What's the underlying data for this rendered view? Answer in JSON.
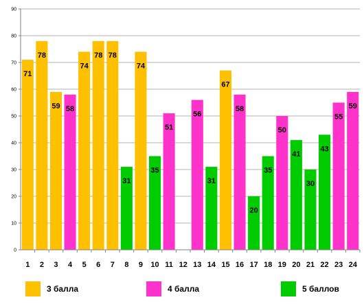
{
  "chart_data": {
    "type": "bar",
    "categories": [
      "1",
      "2",
      "3",
      "4",
      "5",
      "6",
      "7",
      "8",
      "9",
      "10",
      "11",
      "12",
      "13",
      "14",
      "15",
      "16",
      "17",
      "18",
      "19",
      "20",
      "21",
      "22",
      "23",
      "24"
    ],
    "values": [
      71,
      78,
      59,
      58,
      74,
      78,
      78,
      31,
      74,
      35,
      51,
      null,
      56,
      31,
      67,
      58,
      20,
      35,
      50,
      41,
      30,
      43,
      55,
      59
    ],
    "groups": [
      "3",
      "3",
      "3",
      "4",
      "3",
      "3",
      "3",
      "5",
      "3",
      "5",
      "4",
      null,
      "4",
      "5",
      "3",
      "4",
      "5",
      "5",
      "4",
      "5",
      "5",
      "5",
      "4",
      "4"
    ],
    "ylim": [
      0,
      90
    ],
    "yticks": [
      0,
      10,
      20,
      30,
      40,
      50,
      60,
      70,
      80,
      90
    ],
    "grid": true,
    "legend_position": "bottom",
    "legend": [
      {
        "key": "3",
        "label": "3 балла",
        "color": "#FFC000"
      },
      {
        "key": "4",
        "label": "4 балла",
        "color": "#FF33CC"
      },
      {
        "key": "5",
        "label": "5 баллов",
        "color": "#00CC00"
      }
    ]
  }
}
